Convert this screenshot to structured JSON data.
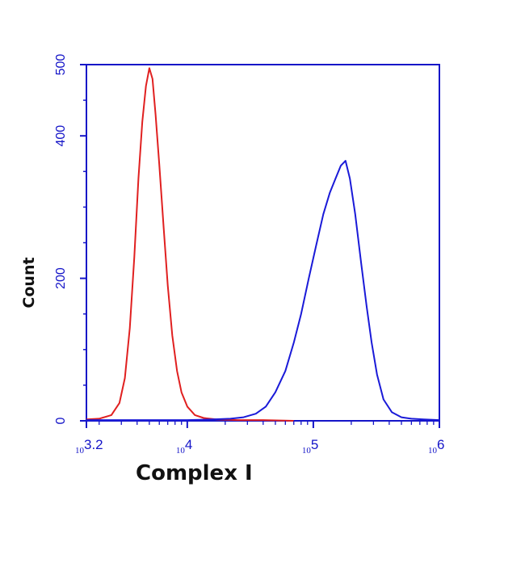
{
  "chart_data": {
    "type": "line",
    "title": "",
    "xlabel": "Complex I",
    "ylabel": "Count",
    "x_scale": "log10",
    "xlim": [
      1585,
      1000000
    ],
    "ylim": [
      0,
      500
    ],
    "x_ticks": [
      {
        "value": 1585,
        "base": "10",
        "exp": "3.2"
      },
      {
        "value": 10000,
        "base": "10",
        "exp": "4"
      },
      {
        "value": 100000,
        "base": "10",
        "exp": "5"
      },
      {
        "value": 1000000,
        "base": "10",
        "exp": "6"
      }
    ],
    "y_ticks": [
      {
        "value": 0,
        "label": "0"
      },
      {
        "value": 200,
        "label": "200"
      },
      {
        "value": 400,
        "label": "400"
      },
      {
        "value": 500,
        "label": "500"
      }
    ],
    "grid": false,
    "legend": "none",
    "series": [
      {
        "color": "#e02020",
        "points": [
          [
            1585,
            2
          ],
          [
            2000,
            3
          ],
          [
            2500,
            8
          ],
          [
            2900,
            25
          ],
          [
            3200,
            60
          ],
          [
            3500,
            130
          ],
          [
            3800,
            230
          ],
          [
            4100,
            340
          ],
          [
            4400,
            420
          ],
          [
            4700,
            470
          ],
          [
            5000,
            495
          ],
          [
            5300,
            480
          ],
          [
            5600,
            430
          ],
          [
            6000,
            360
          ],
          [
            6500,
            270
          ],
          [
            7000,
            190
          ],
          [
            7600,
            120
          ],
          [
            8300,
            70
          ],
          [
            9000,
            40
          ],
          [
            10000,
            20
          ],
          [
            11500,
            8
          ],
          [
            13500,
            4
          ],
          [
            17000,
            2
          ],
          [
            25000,
            1
          ],
          [
            40000,
            1
          ],
          [
            70000,
            0
          ]
        ]
      },
      {
        "color": "#1a1ad8",
        "points": [
          [
            1585,
            1
          ],
          [
            5000,
            1
          ],
          [
            10000,
            1
          ],
          [
            16000,
            2
          ],
          [
            22000,
            3
          ],
          [
            28000,
            5
          ],
          [
            35000,
            10
          ],
          [
            42000,
            20
          ],
          [
            50000,
            40
          ],
          [
            60000,
            70
          ],
          [
            70000,
            110
          ],
          [
            80000,
            150
          ],
          [
            92000,
            200
          ],
          [
            105000,
            245
          ],
          [
            120000,
            290
          ],
          [
            135000,
            320
          ],
          [
            150000,
            340
          ],
          [
            165000,
            358
          ],
          [
            180000,
            365
          ],
          [
            195000,
            340
          ],
          [
            215000,
            290
          ],
          [
            240000,
            220
          ],
          [
            265000,
            160
          ],
          [
            290000,
            110
          ],
          [
            320000,
            65
          ],
          [
            360000,
            30
          ],
          [
            420000,
            12
          ],
          [
            500000,
            5
          ],
          [
            600000,
            3
          ],
          [
            750000,
            2
          ],
          [
            1000000,
            1
          ]
        ]
      }
    ]
  }
}
